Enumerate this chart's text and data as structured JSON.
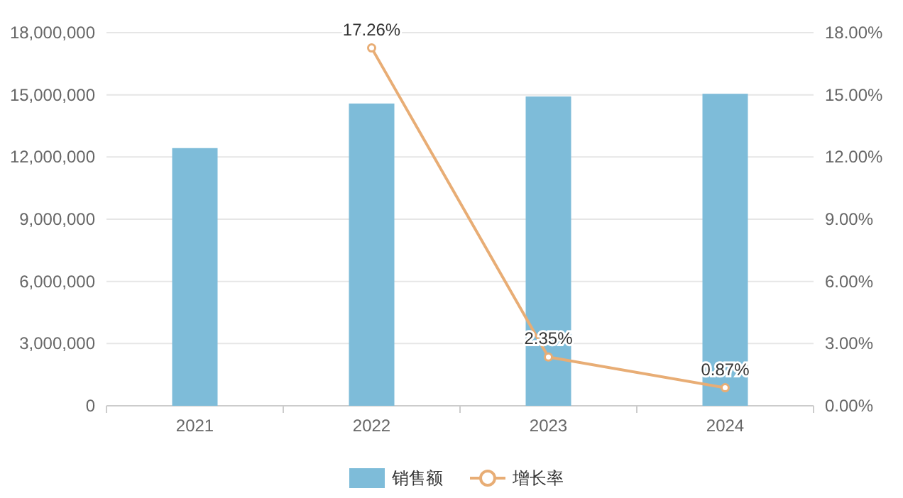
{
  "chart_data": {
    "type": "bar",
    "categories": [
      "2021",
      "2022",
      "2023",
      "2024"
    ],
    "series": [
      {
        "name": "销售额",
        "color": "#7ebcd9",
        "values": [
          12430000,
          14580000,
          14920000,
          15050000
        ]
      },
      {
        "name": "增长率",
        "type": "line",
        "axis": "y2",
        "color": "#e8ad75",
        "values": [
          null,
          17.26,
          2.35,
          0.87
        ],
        "value_labels": [
          null,
          "17.26%",
          "2.35%",
          "0.87%"
        ],
        "marker": "circle"
      }
    ],
    "ylim": [
      0,
      18000000
    ],
    "yticks": [
      {
        "value": 0,
        "label": "0"
      },
      {
        "value": 3000000,
        "label": "3,000,000"
      },
      {
        "value": 6000000,
        "label": "6,000,000"
      },
      {
        "value": 9000000,
        "label": "9,000,000"
      },
      {
        "value": 12000000,
        "label": "12,000,000"
      },
      {
        "value": 15000000,
        "label": "15,000,000"
      },
      {
        "value": 18000000,
        "label": "18,000,000"
      }
    ],
    "y2lim": [
      0,
      18
    ],
    "y2ticks": [
      {
        "value": 0,
        "label": "0.00%"
      },
      {
        "value": 3,
        "label": "3.00%"
      },
      {
        "value": 6,
        "label": "6.00%"
      },
      {
        "value": 9,
        "label": "9.00%"
      },
      {
        "value": 12,
        "label": "12.00%"
      },
      {
        "value": 15,
        "label": "15.00%"
      },
      {
        "value": 18,
        "label": "18.00%"
      }
    ],
    "grid": "y",
    "legend": "bottom"
  }
}
